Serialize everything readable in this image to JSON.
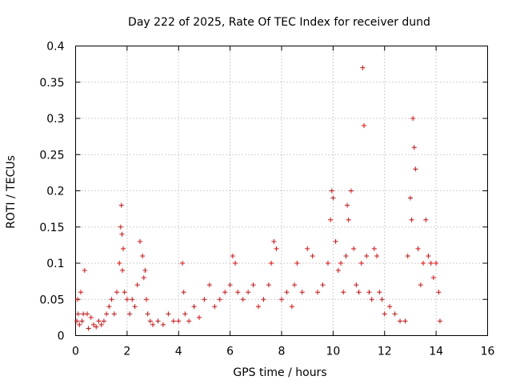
{
  "chart_data": {
    "type": "scatter",
    "title": "Day 222 of 2025, Rate Of TEC Index for receiver dund",
    "xlabel": "GPS time / hours",
    "ylabel": "ROTI / TECUs",
    "xlim": [
      0,
      16
    ],
    "ylim": [
      0,
      0.4
    ],
    "xticks": [
      "0",
      "2",
      "4",
      "6",
      "8",
      "10",
      "12",
      "14",
      "16"
    ],
    "yticks": [
      "0",
      "0.05",
      "0.1",
      "0.15",
      "0.2",
      "0.25",
      "0.3",
      "0.35",
      "0.4"
    ],
    "grid": true,
    "marker": "+",
    "color": "#ff0000",
    "series": [
      {
        "name": "ROTI",
        "x": [
          0.05,
          0.08,
          0.1,
          0.15,
          0.2,
          0.25,
          0.3,
          0.35,
          0.45,
          0.5,
          0.6,
          0.7,
          0.8,
          0.9,
          1.0,
          1.1,
          1.2,
          1.3,
          1.4,
          1.5,
          1.6,
          1.7,
          1.75,
          1.78,
          1.8,
          1.82,
          1.85,
          1.9,
          2.0,
          2.1,
          2.2,
          2.3,
          2.4,
          2.5,
          2.6,
          2.65,
          2.7,
          2.75,
          2.8,
          2.9,
          3.0,
          3.2,
          3.4,
          3.6,
          3.8,
          4.0,
          4.15,
          4.2,
          4.25,
          4.4,
          4.6,
          4.8,
          5.0,
          5.2,
          5.4,
          5.6,
          5.8,
          6.0,
          6.1,
          6.2,
          6.3,
          6.5,
          6.7,
          6.9,
          7.1,
          7.3,
          7.5,
          7.6,
          7.7,
          7.8,
          8.0,
          8.2,
          8.4,
          8.5,
          8.6,
          8.8,
          9.0,
          9.2,
          9.4,
          9.6,
          9.8,
          9.9,
          9.95,
          10.0,
          10.1,
          10.2,
          10.3,
          10.4,
          10.5,
          10.55,
          10.6,
          10.7,
          10.8,
          10.9,
          11.0,
          11.1,
          11.15,
          11.2,
          11.3,
          11.4,
          11.5,
          11.6,
          11.7,
          11.8,
          11.9,
          12.0,
          12.2,
          12.4,
          12.6,
          12.8,
          12.9,
          13.0,
          13.05,
          13.1,
          13.15,
          13.2,
          13.3,
          13.4,
          13.5,
          13.6,
          13.7,
          13.8,
          13.9,
          14.0,
          14.1,
          14.15
        ],
        "y": [
          0.02,
          0.05,
          0.03,
          0.015,
          0.06,
          0.02,
          0.03,
          0.09,
          0.03,
          0.01,
          0.025,
          0.015,
          0.012,
          0.02,
          0.015,
          0.02,
          0.03,
          0.04,
          0.05,
          0.03,
          0.06,
          0.1,
          0.15,
          0.18,
          0.14,
          0.09,
          0.12,
          0.06,
          0.05,
          0.03,
          0.05,
          0.04,
          0.07,
          0.13,
          0.11,
          0.08,
          0.09,
          0.05,
          0.03,
          0.02,
          0.015,
          0.02,
          0.015,
          0.03,
          0.02,
          0.02,
          0.1,
          0.06,
          0.03,
          0.02,
          0.04,
          0.025,
          0.05,
          0.07,
          0.04,
          0.05,
          0.06,
          0.07,
          0.11,
          0.1,
          0.06,
          0.05,
          0.06,
          0.07,
          0.04,
          0.05,
          0.07,
          0.1,
          0.13,
          0.12,
          0.05,
          0.06,
          0.04,
          0.07,
          0.1,
          0.06,
          0.12,
          0.11,
          0.06,
          0.07,
          0.1,
          0.16,
          0.2,
          0.19,
          0.13,
          0.09,
          0.1,
          0.06,
          0.11,
          0.18,
          0.16,
          0.2,
          0.12,
          0.07,
          0.06,
          0.1,
          0.37,
          0.29,
          0.11,
          0.06,
          0.05,
          0.12,
          0.11,
          0.06,
          0.05,
          0.03,
          0.04,
          0.03,
          0.02,
          0.02,
          0.11,
          0.19,
          0.16,
          0.3,
          0.26,
          0.23,
          0.12,
          0.07,
          0.1,
          0.16,
          0.11,
          0.1,
          0.08,
          0.1,
          0.06,
          0.02
        ]
      }
    ]
  }
}
